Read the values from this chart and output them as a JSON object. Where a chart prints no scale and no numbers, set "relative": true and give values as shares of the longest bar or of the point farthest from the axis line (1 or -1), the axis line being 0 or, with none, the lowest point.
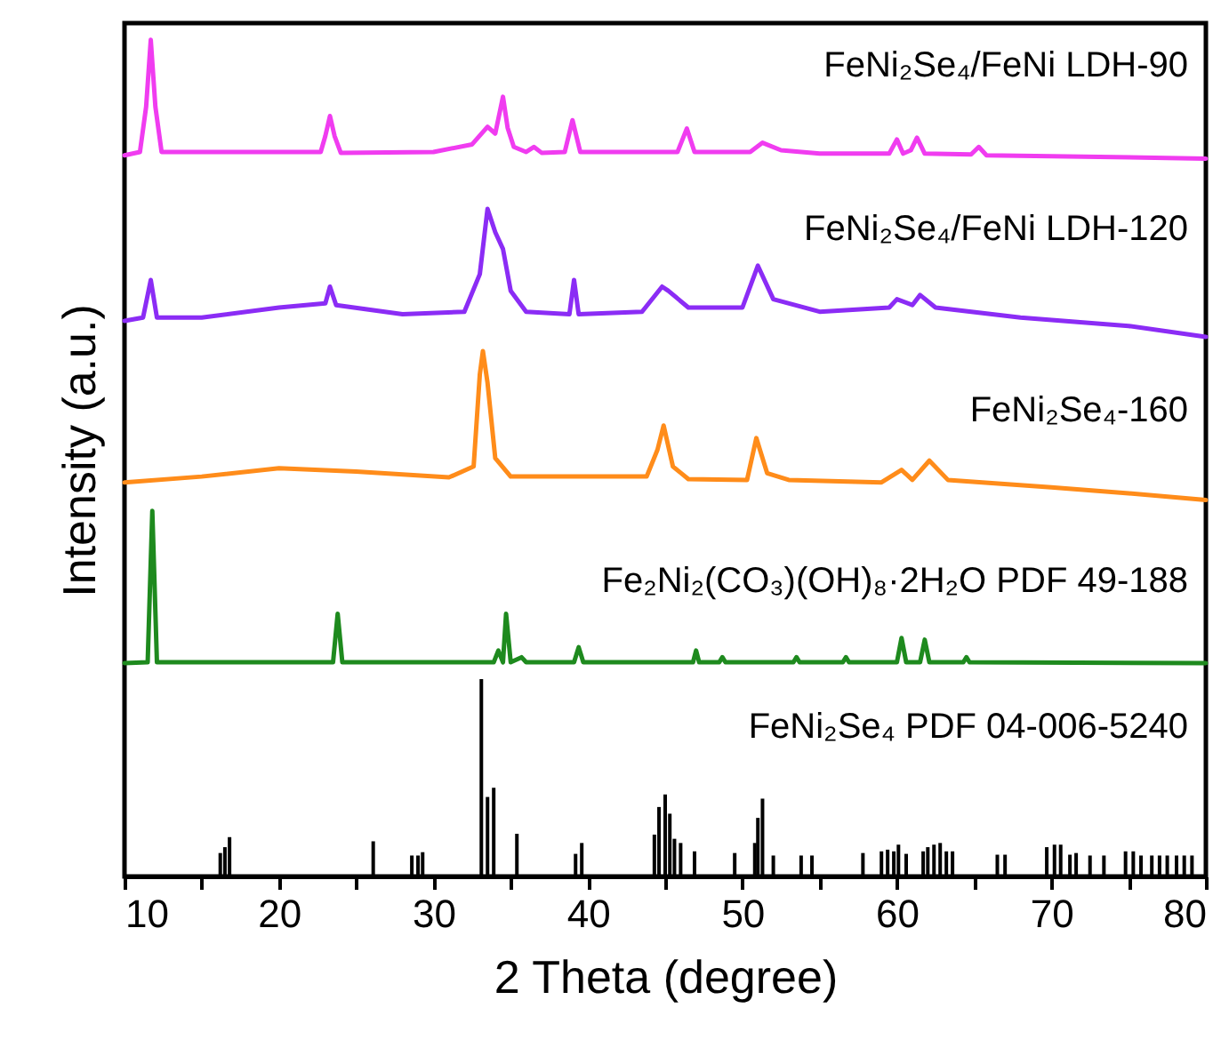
{
  "chart_data": {
    "type": "line",
    "relative": true,
    "xlabel": "2 Theta (degree)",
    "ylabel": "Intensity (a.u.)",
    "xlim": [
      10,
      80
    ],
    "xticks": [
      10,
      {
        "value": 15,
        "label": null
      },
      20,
      {
        "value": 25,
        "label": null
      },
      30,
      {
        "value": 35,
        "label": null
      },
      40,
      {
        "value": 45,
        "label": null
      },
      50,
      {
        "value": 55,
        "label": null
      },
      60,
      {
        "value": 65,
        "label": null
      },
      70,
      {
        "value": 75,
        "label": null
      },
      80
    ],
    "grid": false,
    "series": [
      {
        "name": "FeNi₂Se₄/FeNi LDH-90",
        "color": "#f03cf0",
        "x": [
          10,
          11.0,
          11.4,
          11.7,
          12.0,
          12.4,
          22.7,
          23.0,
          23.3,
          23.6,
          24.0,
          30,
          32.5,
          33.5,
          34.0,
          34.5,
          34.8,
          35.2,
          36.0,
          36.5,
          37.0,
          38.5,
          39.0,
          39.5,
          45.8,
          46.4,
          46.9,
          50.5,
          51.3,
          52.5,
          55,
          59.5,
          60.0,
          60.4,
          60.9,
          61.3,
          61.8,
          64.8,
          65.3,
          65.8,
          70,
          80
        ],
        "values": [
          0.862,
          0.866,
          0.92,
          1.0,
          0.92,
          0.866,
          0.866,
          0.885,
          0.909,
          0.885,
          0.865,
          0.866,
          0.875,
          0.896,
          0.888,
          0.932,
          0.895,
          0.872,
          0.866,
          0.872,
          0.865,
          0.866,
          0.904,
          0.866,
          0.866,
          0.894,
          0.866,
          0.866,
          0.877,
          0.868,
          0.864,
          0.864,
          0.881,
          0.864,
          0.868,
          0.883,
          0.864,
          0.863,
          0.872,
          0.862,
          0.861,
          0.858
        ]
      },
      {
        "name": "FeNi₂Se₄/FeNi LDH-120",
        "color": "#8b2cf5",
        "x": [
          10,
          11.2,
          11.7,
          12.1,
          15,
          20,
          23.0,
          23.3,
          23.7,
          28,
          32,
          33.0,
          33.5,
          34.0,
          34.5,
          35.0,
          36,
          38.8,
          39.1,
          39.4,
          43.5,
          44.8,
          45.2,
          46.5,
          50,
          51.0,
          52,
          55,
          59.5,
          60.0,
          61.0,
          61.5,
          62.5,
          68,
          75,
          80
        ],
        "values": [
          0.664,
          0.668,
          0.713,
          0.668,
          0.668,
          0.68,
          0.685,
          0.705,
          0.683,
          0.672,
          0.675,
          0.72,
          0.798,
          0.77,
          0.75,
          0.7,
          0.675,
          0.672,
          0.713,
          0.672,
          0.675,
          0.705,
          0.7,
          0.68,
          0.68,
          0.73,
          0.69,
          0.675,
          0.68,
          0.69,
          0.683,
          0.695,
          0.68,
          0.668,
          0.658,
          0.645
        ]
      },
      {
        "name": "FeNi₂Se₄-160",
        "color": "#ff8c1a",
        "x": [
          10,
          15,
          20,
          25,
          31,
          32.6,
          33.0,
          33.2,
          33.5,
          34.0,
          35,
          43.8,
          44.5,
          44.9,
          45.5,
          46.5,
          50.3,
          50.9,
          51.6,
          53,
          59,
          60.3,
          61,
          62.1,
          63.3,
          70,
          75,
          80
        ],
        "values": [
          0.471,
          0.478,
          0.488,
          0.484,
          0.477,
          0.49,
          0.6,
          0.628,
          0.59,
          0.5,
          0.478,
          0.478,
          0.51,
          0.539,
          0.49,
          0.475,
          0.474,
          0.524,
          0.482,
          0.474,
          0.471,
          0.486,
          0.474,
          0.497,
          0.474,
          0.465,
          0.458,
          0.45
        ]
      },
      {
        "name": "Fe₂Ni₂(CO₃)(OH)₈·2H₂O PDF 49-188",
        "color": "#1e8a1e",
        "x": [
          10,
          11.5,
          11.8,
          12.1,
          23.5,
          23.8,
          24.1,
          33.9,
          34.2,
          34.5,
          34.7,
          35.0,
          35.7,
          36.0,
          39.1,
          39.4,
          39.7,
          46.8,
          47.0,
          47.2,
          48.5,
          48.7,
          48.9,
          53.3,
          53.5,
          53.7,
          56.5,
          56.7,
          56.9,
          60.0,
          60.3,
          60.6,
          61.5,
          61.8,
          62.1,
          64.3,
          64.5,
          64.7,
          80
        ],
        "values": [
          0.255,
          0.256,
          0.437,
          0.256,
          0.256,
          0.314,
          0.256,
          0.256,
          0.27,
          0.256,
          0.314,
          0.256,
          0.262,
          0.256,
          0.256,
          0.274,
          0.256,
          0.256,
          0.27,
          0.256,
          0.256,
          0.262,
          0.256,
          0.256,
          0.262,
          0.256,
          0.256,
          0.262,
          0.256,
          0.256,
          0.285,
          0.256,
          0.256,
          0.283,
          0.256,
          0.256,
          0.262,
          0.256,
          0.255
        ]
      },
      {
        "name": "FeNi₂Se₄ PDF 04-006-5240",
        "color": "#000000",
        "type": "bar",
        "x": [
          16.2,
          16.5,
          16.8,
          26.1,
          28.6,
          29.0,
          29.3,
          33.1,
          33.5,
          33.9,
          35.4,
          39.2,
          39.6,
          44.3,
          44.6,
          45.0,
          45.3,
          45.6,
          46.0,
          46.9,
          49.5,
          50.8,
          51.0,
          51.3,
          52.0,
          53.8,
          54.5,
          57.8,
          59.0,
          59.4,
          59.8,
          60.1,
          60.6,
          61.7,
          62.0,
          62.4,
          62.8,
          63.2,
          63.6,
          66.5,
          67.0,
          69.7,
          70.2,
          70.6,
          71.2,
          71.6,
          72.5,
          73.4,
          74.8,
          75.3,
          75.8,
          76.5,
          77.0,
          77.5,
          78.1,
          78.6,
          79.1
        ],
        "values": [
          0.028,
          0.035,
          0.047,
          0.042,
          0.025,
          0.025,
          0.029,
          0.236,
          0.095,
          0.106,
          0.051,
          0.027,
          0.04,
          0.05,
          0.083,
          0.098,
          0.075,
          0.045,
          0.04,
          0.03,
          0.028,
          0.04,
          0.07,
          0.093,
          0.025,
          0.025,
          0.025,
          0.028,
          0.03,
          0.032,
          0.03,
          0.038,
          0.027,
          0.03,
          0.035,
          0.038,
          0.04,
          0.03,
          0.03,
          0.026,
          0.026,
          0.035,
          0.038,
          0.038,
          0.026,
          0.028,
          0.025,
          0.025,
          0.03,
          0.03,
          0.025,
          0.025,
          0.025,
          0.025,
          0.025,
          0.025,
          0.025
        ]
      }
    ]
  }
}
